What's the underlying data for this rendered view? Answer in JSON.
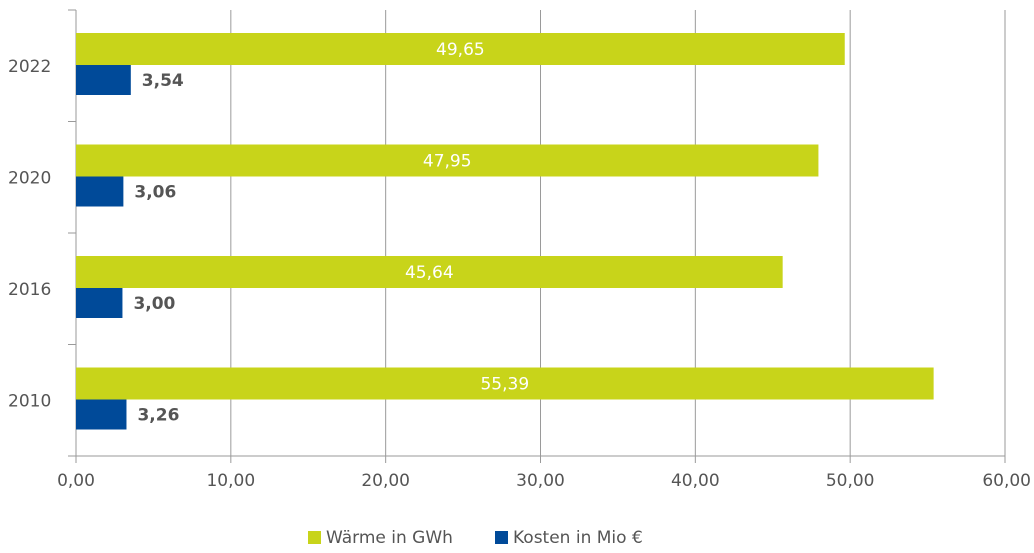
{
  "chart_data": {
    "type": "bar",
    "orientation": "horizontal",
    "categories": [
      "2010",
      "2016",
      "2020",
      "2022"
    ],
    "series": [
      {
        "name": "Wärme in GWh",
        "color": "#c8d41a",
        "values": [
          55.39,
          45.64,
          47.95,
          49.65
        ],
        "labels": [
          "55,39",
          "45,64",
          "47,95",
          "49,65"
        ]
      },
      {
        "name": "Kosten in Mio €",
        "color": "#004a99",
        "values": [
          3.26,
          3.0,
          3.06,
          3.54
        ],
        "labels": [
          "3,26",
          "3,00",
          "3,06",
          "3,54"
        ]
      }
    ],
    "xlim": [
      0,
      60
    ],
    "xticks": [
      0,
      10,
      20,
      30,
      40,
      50,
      60
    ],
    "xtick_labels": [
      "0,00",
      "10,00",
      "20,00",
      "30,00",
      "40,00",
      "50,00",
      "60,00"
    ],
    "grid": "vertical",
    "legend": "bottom-center",
    "title": "",
    "xlabel": "",
    "ylabel": ""
  }
}
